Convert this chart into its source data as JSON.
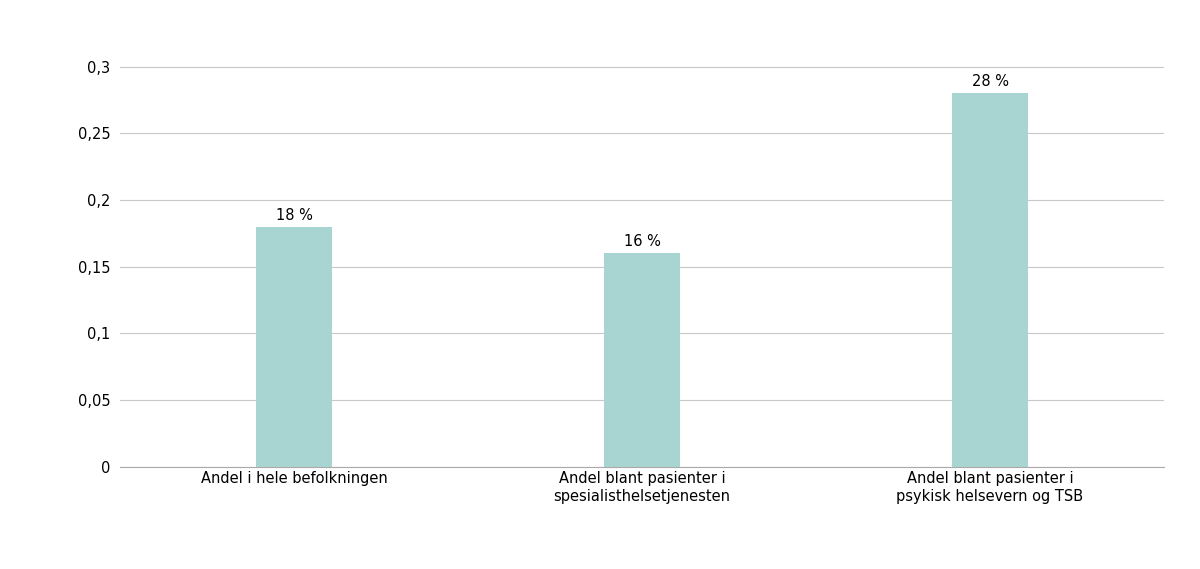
{
  "categories": [
    "Andel i hele befolkningen",
    "Andel blant pasienter i\nspesialisthelsetjenesten",
    "Andel blant pasienter i\npsykisk helsevern og TSB"
  ],
  "values": [
    0.18,
    0.16,
    0.28
  ],
  "labels": [
    "18 %",
    "16 %",
    "28 %"
  ],
  "bar_color": "#a8d5d1",
  "ylim": [
    0,
    0.32
  ],
  "yticks": [
    0,
    0.05,
    0.1,
    0.15,
    0.2,
    0.25,
    0.3
  ],
  "ytick_labels": [
    "0",
    "0,05",
    "0,1",
    "0,15",
    "0,2",
    "0,25",
    "0,3"
  ],
  "background_color": "#ffffff",
  "grid_color": "#c8c8c8",
  "bar_width": 0.22,
  "label_fontsize": 10.5,
  "tick_fontsize": 10.5,
  "xlabel_fontsize": 10.5
}
